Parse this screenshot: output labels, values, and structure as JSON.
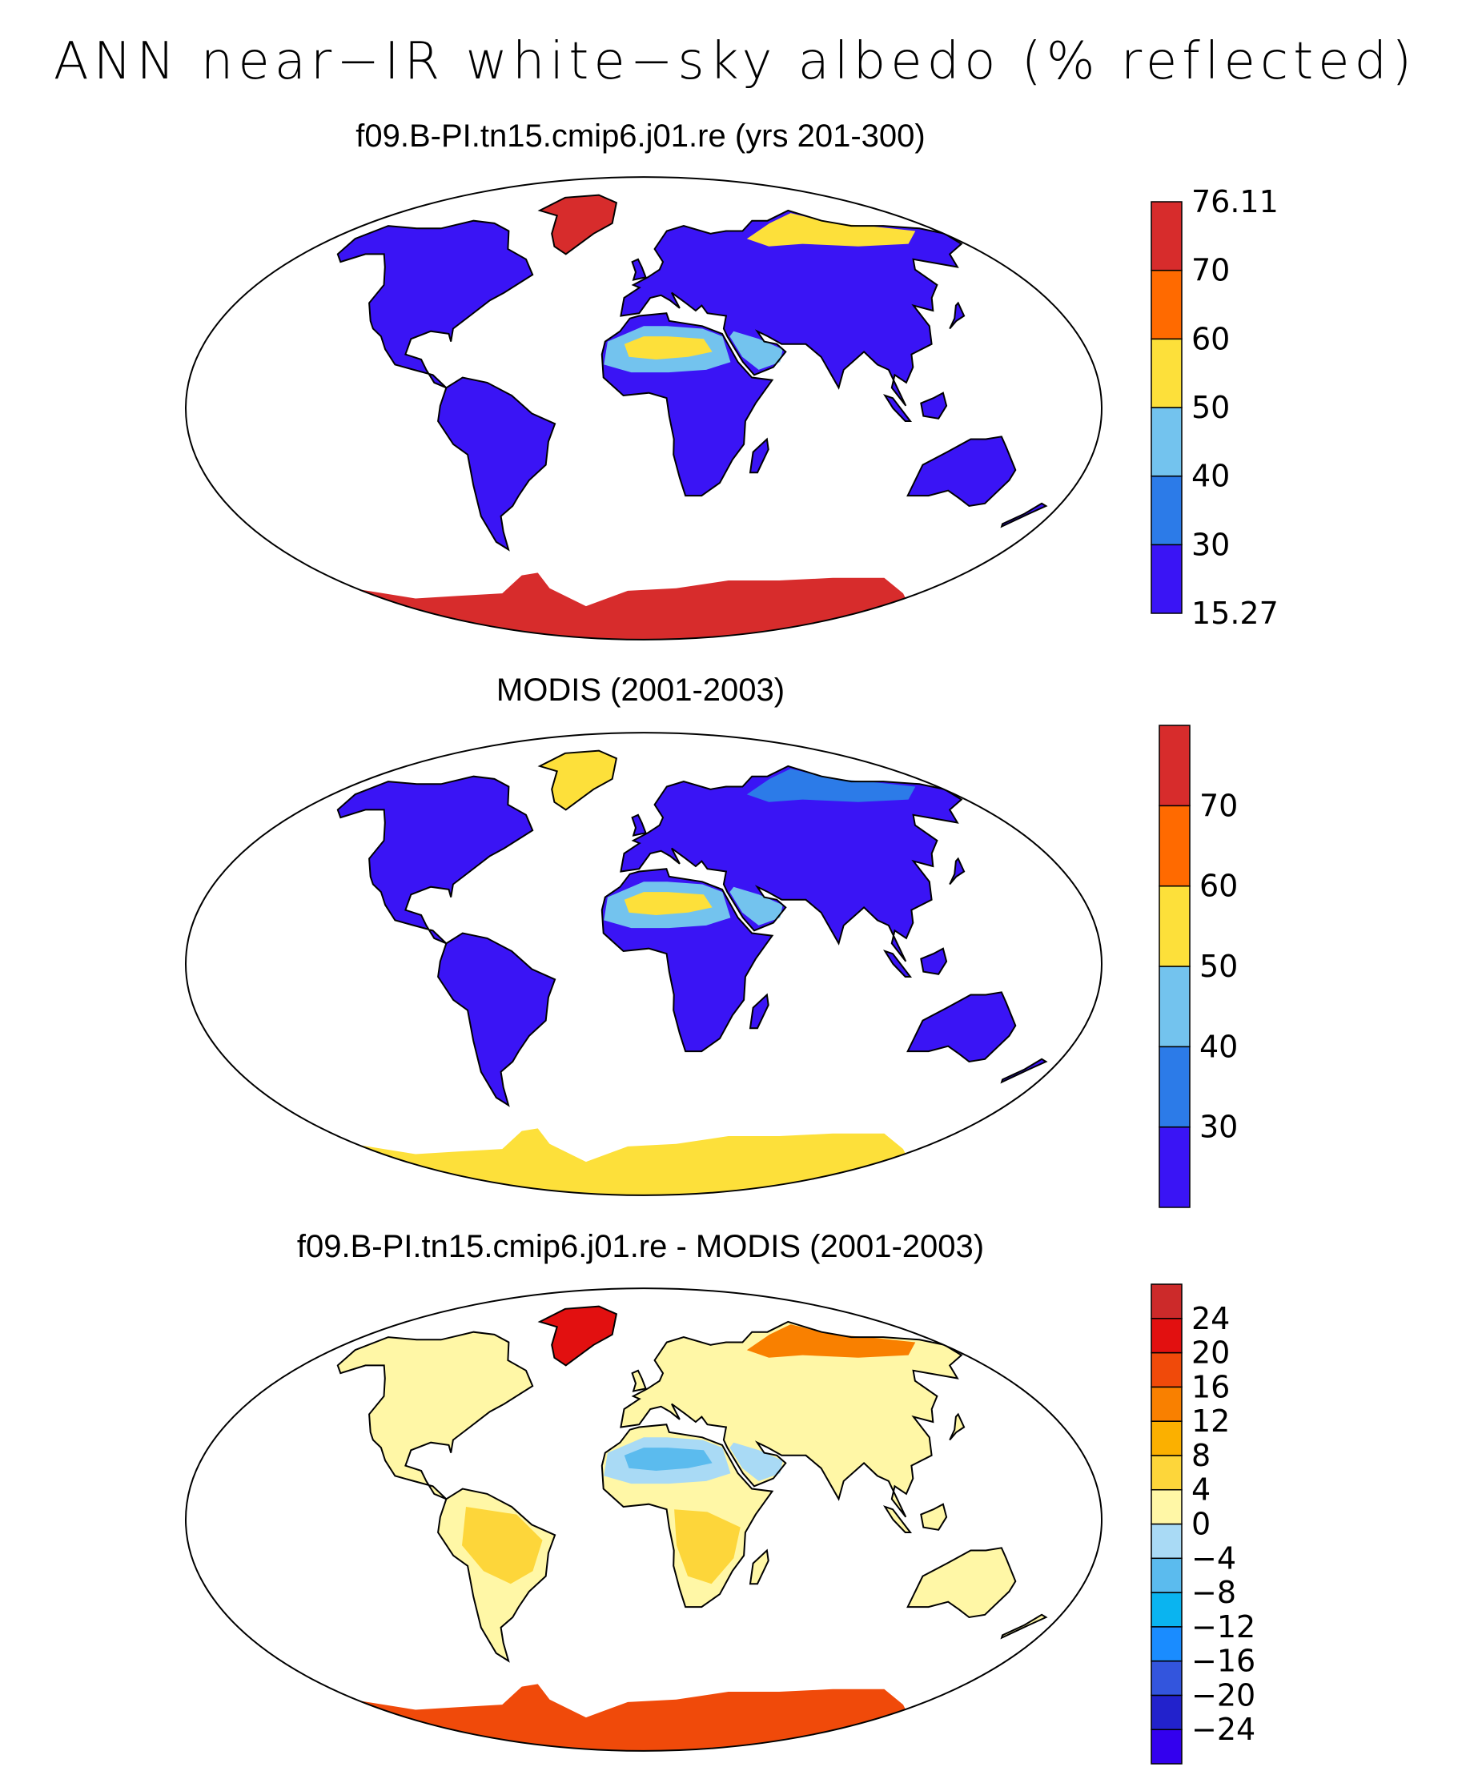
{
  "title": "ANN near−IR white−sky albedo (% reflected)",
  "panels": [
    {
      "title": "f09.B-PI.tn15.cmip6.j01.re (yrs 201-300)",
      "colorbar": {
        "colors": [
          "#3a14f5",
          "#2c7be8",
          "#73c3ee",
          "#fde03a",
          "#ff6a00",
          "#d72c2c"
        ],
        "labels": [
          "15.27",
          "30",
          "40",
          "50",
          "60",
          "70",
          "76.11"
        ]
      },
      "land": {
        "extratropics": "#3a14f5",
        "desert": "#73c3ee",
        "desert_core": "#fde03a",
        "greenland": "#d72c2c",
        "antarctica": "#d72c2c",
        "siberia": "#fde03a"
      }
    },
    {
      "title": "MODIS (2001-2003)",
      "colorbar": {
        "colors": [
          "#3a14f5",
          "#2c7be8",
          "#73c3ee",
          "#fde03a",
          "#ff6a00",
          "#d72c2c"
        ],
        "labels": [
          "",
          "30",
          "40",
          "50",
          "60",
          "70",
          ""
        ]
      },
      "land": {
        "extratropics": "#3a14f5",
        "desert": "#73c3ee",
        "desert_core": "#fde03a",
        "greenland": "#fde03a",
        "antarctica": "#fde03a",
        "siberia": "#2c7be8"
      }
    },
    {
      "title": "f09.B-PI.tn15.cmip6.j01.re - MODIS (2001-2003)",
      "colorbar": {
        "colors": [
          "#3300ee",
          "#2222cc",
          "#3355dd",
          "#1a8cff",
          "#0ab4f0",
          "#5bbbee",
          "#a9daf5",
          "#fff7a6",
          "#fdd63a",
          "#fbb000",
          "#f98000",
          "#f04a0a",
          "#e21010",
          "#cc2a2a"
        ],
        "labels": [
          "−24",
          "−20",
          "−16",
          "−12",
          "−8",
          "−4",
          "0",
          "4",
          "8",
          "12",
          "16",
          "20",
          "24"
        ]
      },
      "land": {
        "extratropics": "#fff7a6",
        "desert": "#a9daf5",
        "desert_core": "#5bbbee",
        "greenland": "#e21010",
        "antarctica": "#f04a0a",
        "siberia": "#f98000",
        "tropics": "#fdd63a"
      }
    }
  ]
}
